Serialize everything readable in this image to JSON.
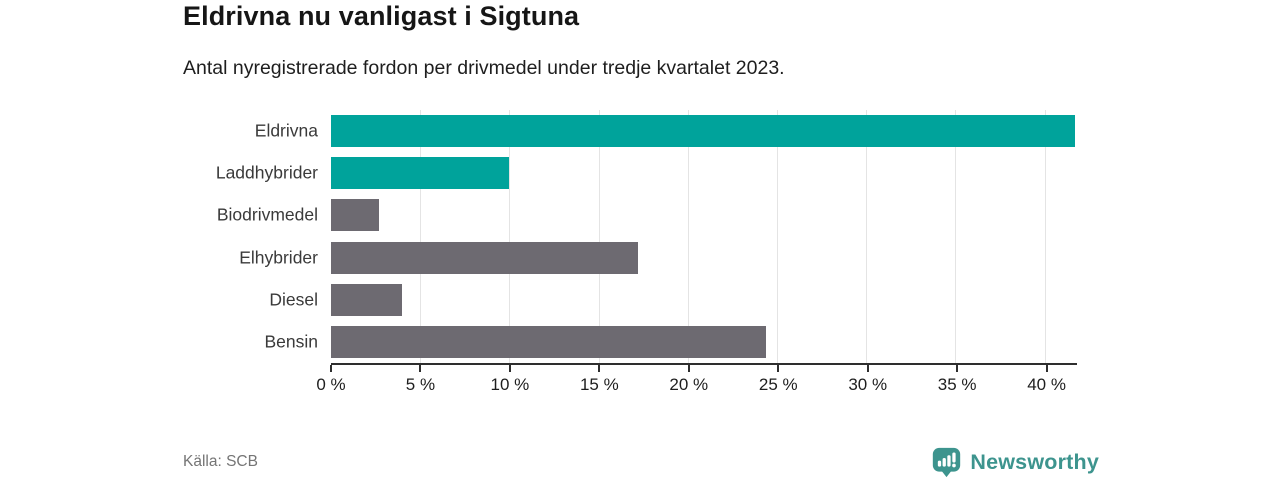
{
  "header": {
    "title": "Eldrivna nu vanligast i Sigtuna",
    "subtitle": "Antal nyregistrerade fordon per drivmedel under tredje kvartalet 2023."
  },
  "chart_data": {
    "type": "bar",
    "orientation": "horizontal",
    "title": "Eldrivna nu vanligast i Sigtuna",
    "subtitle": "Antal nyregistrerade fordon per drivmedel under tredje kvartalet 2023.",
    "categories": [
      "Eldrivna",
      "Laddhybrider",
      "Biodrivmedel",
      "Elhybrider",
      "Diesel",
      "Bensin"
    ],
    "values": [
      41.7,
      10.0,
      2.7,
      17.2,
      4.0,
      24.4
    ],
    "unit": "%",
    "xlim": [
      0,
      41.7
    ],
    "ticks": [
      0,
      5,
      10,
      15,
      20,
      25,
      30,
      35,
      40
    ],
    "tick_labels": [
      "0 %",
      "5 %",
      "10 %",
      "15 %",
      "20 %",
      "25 %",
      "30 %",
      "35 %",
      "40 %"
    ],
    "bar_colors": [
      "#00a39b",
      "#00a39b",
      "#6d6a71",
      "#6d6a71",
      "#6d6a71",
      "#6d6a71"
    ],
    "grid": true,
    "legend": false
  },
  "footer": {
    "source": "Källa: SCB",
    "brand": "Newsworthy"
  },
  "colors": {
    "accent_teal": "#00a39b",
    "bar_gray": "#6d6a71",
    "brand_teal": "#3d948e",
    "gridline": "#e4e4e4",
    "axis": "#2e2e2e"
  }
}
